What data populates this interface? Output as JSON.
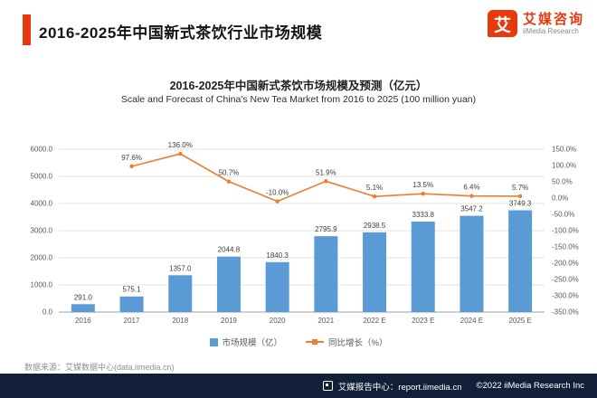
{
  "header": {
    "title": "2016-2025年中国新式茶饮行业市场规模",
    "accent_color": "#e8380d"
  },
  "logo": {
    "glyph": "艾",
    "brand_cn": "艾媒咨询",
    "brand_en": "iiMedia Research"
  },
  "chart_data": {
    "type": "bar",
    "title": "2016-2025年中国新式茶饮市场规模及预测（亿元）",
    "subtitle": "Scale and Forecast of China's New Tea Market from 2016 to 2025 (100 million yuan)",
    "categories": [
      "2016",
      "2017",
      "2018",
      "2019",
      "2020",
      "2021",
      "2022 E",
      "2023 E",
      "2024 E",
      "2025 E"
    ],
    "series": [
      {
        "name": "市场规模（亿）",
        "type": "bar",
        "color": "#5b9bd5",
        "values": [
          291.0,
          575.1,
          1357.0,
          2044.8,
          1840.3,
          2795.9,
          2938.5,
          3333.8,
          3547.2,
          3749.3
        ],
        "labels": [
          "291.0",
          "575.1",
          "1357.0",
          "2044.8",
          "1840.3",
          "2795.9",
          "2938.5",
          "3333.8",
          "3547.2",
          "3749.3"
        ]
      },
      {
        "name": "同比增长（%）",
        "type": "line",
        "color": "#ed7d31",
        "values": [
          null,
          97.6,
          136.0,
          50.7,
          -10.0,
          51.9,
          5.1,
          13.5,
          6.4,
          5.7
        ],
        "labels": [
          "",
          "97.6%",
          "136.0%",
          "50.7%",
          "-10.0%",
          "51.9%",
          "5.1%",
          "13.5%",
          "6.4%",
          "5.7%"
        ]
      }
    ],
    "left_axis": {
      "min": 0,
      "max": 6000,
      "ticks": [
        "6000.0",
        "5000.0",
        "4000.0",
        "3000.0",
        "2000.0",
        "1000.0",
        "0.0"
      ]
    },
    "right_axis": {
      "min": -350,
      "max": 150,
      "ticks": [
        "150.0%",
        "100.0%",
        "50.0%",
        "0.0%",
        "-50.0%",
        "-100.0%",
        "-150.0%",
        "-200.0%",
        "-250.0%",
        "-300.0%",
        "-350.0%"
      ]
    },
    "grid": true,
    "legend_position": "bottom"
  },
  "source_note": "数据来源：艾媒数据中心(data.iimedia.cn)",
  "footer": {
    "report_center": "艾媒报告中心：report.iimedia.cn",
    "copyright": "©2022  iiMedia Research  Inc"
  }
}
